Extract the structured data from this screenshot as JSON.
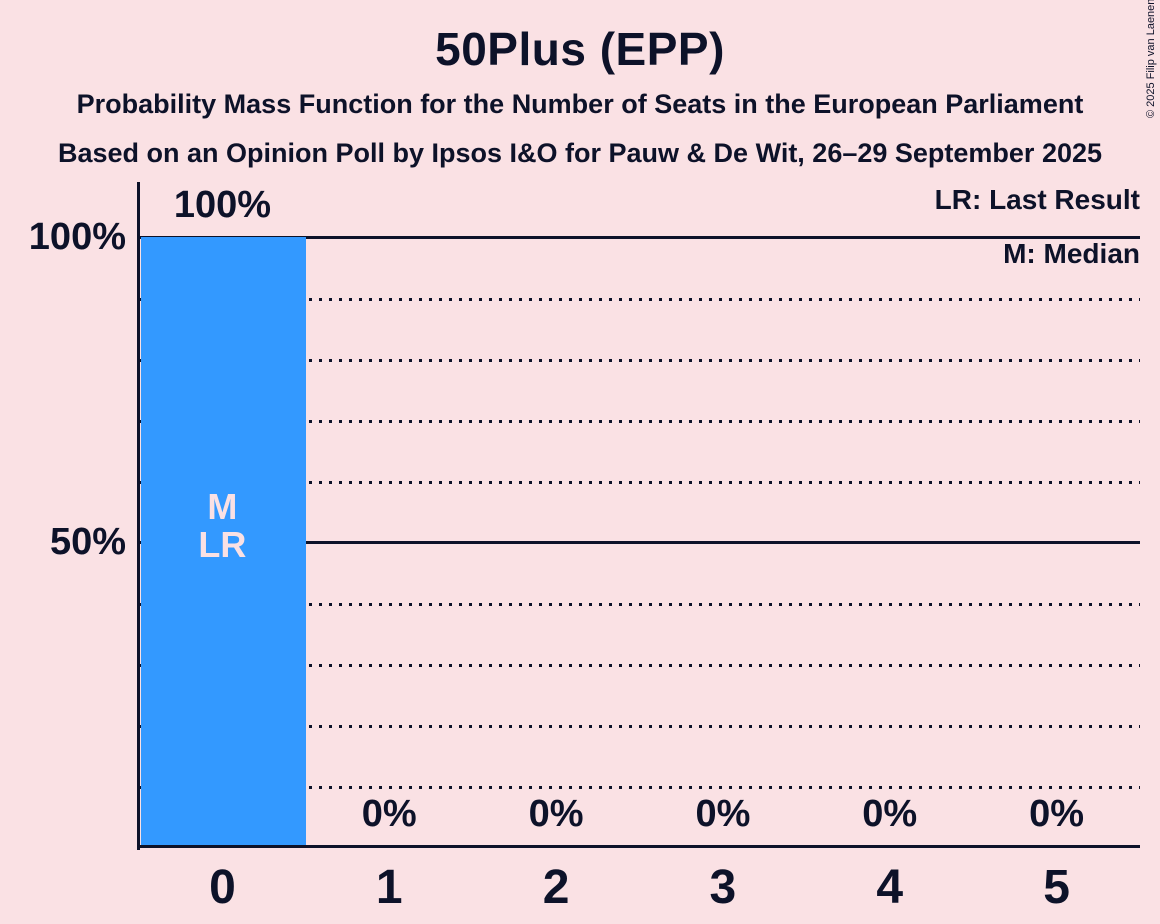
{
  "page": {
    "copyright": "© 2025 Filip van Laenen"
  },
  "chart_data": {
    "type": "bar",
    "title": "50Plus (EPP)",
    "subtitle": "Probability Mass Function for the Number of Seats in the European Parliament",
    "source_line": "Based on an Opinion Poll by Ipsos I&O for Pauw & De Wit, 26–29 September 2025",
    "categories": [
      "0",
      "1",
      "2",
      "3",
      "4",
      "5"
    ],
    "values": [
      100,
      0,
      0,
      0,
      0,
      0
    ],
    "bar_value_labels": [
      "100%",
      "0%",
      "0%",
      "0%",
      "0%",
      "0%"
    ],
    "xlabel": "",
    "ylabel": "",
    "ylim": [
      0,
      100
    ],
    "ytick_labels": [
      "100%",
      "50%"
    ],
    "ytick_values": [
      100,
      50
    ],
    "grid": "horizontal dotted lines every 10%, solid lines at 50% and 100%",
    "legend_position": "top-right",
    "legend": [
      {
        "label": "LR: Last Result"
      },
      {
        "label": "M: Median"
      }
    ],
    "annotations": {
      "median_marker": "M",
      "last_result_marker": "LR",
      "annotated_seat": "0"
    },
    "colors": {
      "bar": "#3399ff",
      "background": "#fae1e4",
      "ink": "#0d1229"
    }
  }
}
